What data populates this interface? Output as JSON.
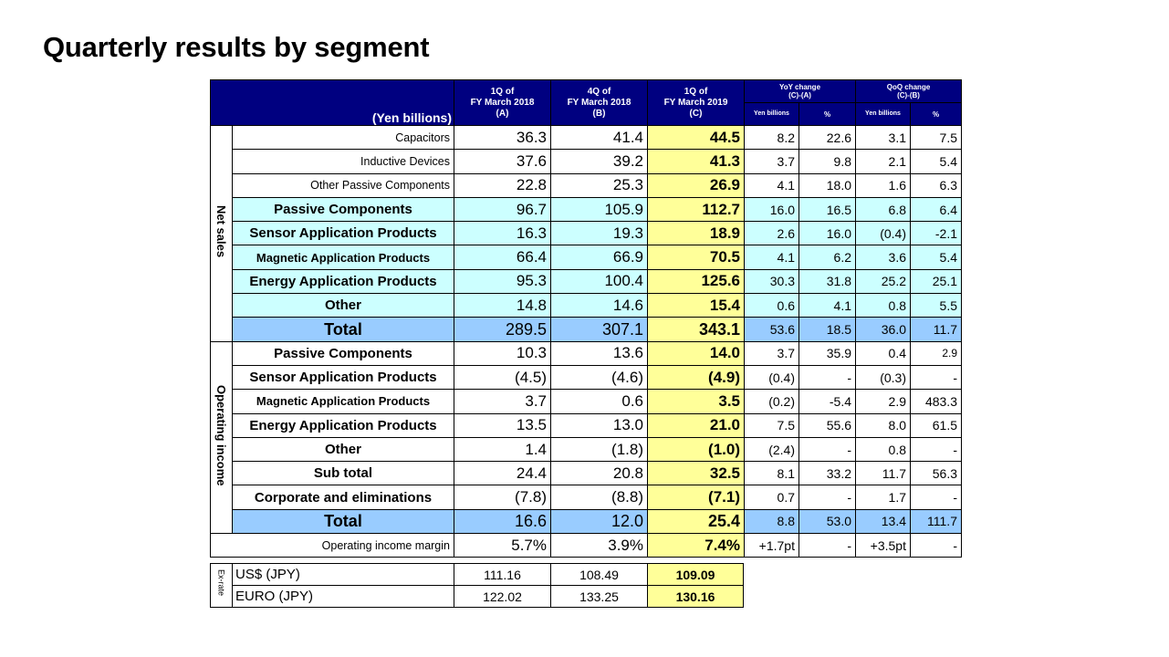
{
  "title": "Quarterly results by segment",
  "header": {
    "unit_label": "(Yen billions)",
    "col_a": [
      "1Q of",
      "FY March 2018",
      "(A)"
    ],
    "col_b": [
      "4Q of",
      "FY March 2018",
      "(B)"
    ],
    "col_c": [
      "1Q of",
      "FY March 2019",
      "(C)"
    ],
    "yoy": [
      "YoY change",
      "(C)-(A)"
    ],
    "qoq": [
      "QoQ change",
      "(C)-(B)"
    ],
    "yen_billions": "Yen billions",
    "pct": "%"
  },
  "net_sales": {
    "label": "Net sales",
    "rows": [
      {
        "name": "Capacitors",
        "a": "36.3",
        "b": "41.4",
        "c": "44.5",
        "yoy": "8.2",
        "yoy_pct": "22.6",
        "qoq": "3.1",
        "qoq_pct": "7.5"
      },
      {
        "name": "Inductive Devices",
        "a": "37.6",
        "b": "39.2",
        "c": "41.3",
        "yoy": "3.7",
        "yoy_pct": "9.8",
        "qoq": "2.1",
        "qoq_pct": "5.4"
      },
      {
        "name": "Other Passive Components",
        "a": "22.8",
        "b": "25.3",
        "c": "26.9",
        "yoy": "4.1",
        "yoy_pct": "18.0",
        "qoq": "1.6",
        "qoq_pct": "6.3"
      },
      {
        "name": "Passive Components",
        "a": "96.7",
        "b": "105.9",
        "c": "112.7",
        "yoy": "16.0",
        "yoy_pct": "16.5",
        "qoq": "6.8",
        "qoq_pct": "6.4"
      },
      {
        "name": "Sensor Application Products",
        "a": "16.3",
        "b": "19.3",
        "c": "18.9",
        "yoy": "2.6",
        "yoy_pct": "16.0",
        "qoq": "(0.4)",
        "qoq_pct": "-2.1"
      },
      {
        "name": "Magnetic Application Products",
        "a": "66.4",
        "b": "66.9",
        "c": "70.5",
        "yoy": "4.1",
        "yoy_pct": "6.2",
        "qoq": "3.6",
        "qoq_pct": "5.4"
      },
      {
        "name": "Energy Application Products",
        "a": "95.3",
        "b": "100.4",
        "c": "125.6",
        "yoy": "30.3",
        "yoy_pct": "31.8",
        "qoq": "25.2",
        "qoq_pct": "25.1"
      },
      {
        "name": "Other",
        "a": "14.8",
        "b": "14.6",
        "c": "15.4",
        "yoy": "0.6",
        "yoy_pct": "4.1",
        "qoq": "0.8",
        "qoq_pct": "5.5"
      },
      {
        "name": "Total",
        "a": "289.5",
        "b": "307.1",
        "c": "343.1",
        "yoy": "53.6",
        "yoy_pct": "18.5",
        "qoq": "36.0",
        "qoq_pct": "11.7"
      }
    ]
  },
  "operating_income": {
    "label": "Operating income",
    "rows": [
      {
        "name": "Passive Components",
        "a": "10.3",
        "b": "13.6",
        "c": "14.0",
        "yoy": "3.7",
        "yoy_pct": "35.9",
        "qoq": "0.4",
        "qoq_pct": "2.9"
      },
      {
        "name": "Sensor Application Products",
        "a": "(4.5)",
        "b": "(4.6)",
        "c": "(4.9)",
        "yoy": "(0.4)",
        "yoy_pct": "-",
        "qoq": "(0.3)",
        "qoq_pct": "-"
      },
      {
        "name": "Magnetic Application Products",
        "a": "3.7",
        "b": "0.6",
        "c": "3.5",
        "yoy": "(0.2)",
        "yoy_pct": "-5.4",
        "qoq": "2.9",
        "qoq_pct": "483.3"
      },
      {
        "name": "Energy Application Products",
        "a": "13.5",
        "b": "13.0",
        "c": "21.0",
        "yoy": "7.5",
        "yoy_pct": "55.6",
        "qoq": "8.0",
        "qoq_pct": "61.5"
      },
      {
        "name": "Other",
        "a": "1.4",
        "b": "(1.8)",
        "c": "(1.0)",
        "yoy": "(2.4)",
        "yoy_pct": "-",
        "qoq": "0.8",
        "qoq_pct": "-"
      },
      {
        "name": "Sub total",
        "a": "24.4",
        "b": "20.8",
        "c": "32.5",
        "yoy": "8.1",
        "yoy_pct": "33.2",
        "qoq": "11.7",
        "qoq_pct": "56.3"
      },
      {
        "name": "Corporate and eliminations",
        "a": "(7.8)",
        "b": "(8.8)",
        "c": "(7.1)",
        "yoy": "0.7",
        "yoy_pct": "-",
        "qoq": "1.7",
        "qoq_pct": "-"
      },
      {
        "name": "Total",
        "a": "16.6",
        "b": "12.0",
        "c": "25.4",
        "yoy": "8.8",
        "yoy_pct": "53.0",
        "qoq": "13.4",
        "qoq_pct": "111.7"
      }
    ]
  },
  "margin": {
    "name": "Operating income margin",
    "a": "5.7%",
    "b": "3.9%",
    "c": "7.4%",
    "yoy": "+1.7pt",
    "yoy_pct": "-",
    "qoq": "+3.5pt",
    "qoq_pct": "-"
  },
  "ex_rate": {
    "label": "Ex-rate",
    "rows": [
      {
        "name": "US$ (JPY)",
        "a": "111.16",
        "b": "108.49",
        "c": "109.09"
      },
      {
        "name": "EURO (JPY)",
        "a": "122.02",
        "b": "133.25",
        "c": "130.16"
      }
    ]
  },
  "colors": {
    "header_bg": "#000080",
    "segment_bg": "#ccffff",
    "total_bg": "#99ccff",
    "highlight_bg": "#ffff99"
  }
}
